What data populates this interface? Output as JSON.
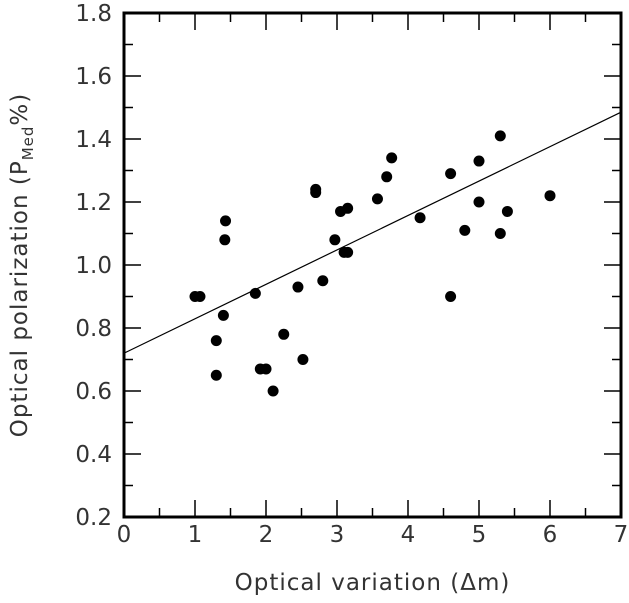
{
  "chart_data": {
    "type": "scatter",
    "xlabel": "Optical variation (Δm)",
    "ylabel_prefix": "Optical polarization (P",
    "ylabel_subscript": "Med",
    "ylabel_suffix": "%)",
    "xlim": [
      0,
      7
    ],
    "ylim": [
      0.2,
      1.8
    ],
    "x_ticks": [
      0,
      1,
      2,
      3,
      4,
      5,
      6,
      7
    ],
    "x_tick_labels": [
      "0",
      "1",
      "2",
      "3",
      "4",
      "5",
      "6",
      "7"
    ],
    "y_ticks": [
      0.2,
      0.4,
      0.6,
      0.8,
      1.0,
      1.2,
      1.4,
      1.6,
      1.8
    ],
    "y_tick_labels": [
      "0.2",
      "0.4",
      "0.6",
      "0.8",
      "1.0",
      "1.2",
      "1.4",
      "1.6",
      "1.8"
    ],
    "grid": false,
    "points": [
      {
        "x": 1.0,
        "y": 0.9
      },
      {
        "x": 1.07,
        "y": 0.9
      },
      {
        "x": 1.3,
        "y": 0.76
      },
      {
        "x": 1.3,
        "y": 0.65
      },
      {
        "x": 1.4,
        "y": 0.84
      },
      {
        "x": 1.42,
        "y": 1.08
      },
      {
        "x": 1.43,
        "y": 1.14
      },
      {
        "x": 1.85,
        "y": 0.91
      },
      {
        "x": 1.92,
        "y": 0.67
      },
      {
        "x": 2.0,
        "y": 0.67
      },
      {
        "x": 2.1,
        "y": 0.6
      },
      {
        "x": 2.25,
        "y": 0.78
      },
      {
        "x": 2.45,
        "y": 0.93
      },
      {
        "x": 2.52,
        "y": 0.7
      },
      {
        "x": 2.7,
        "y": 1.23
      },
      {
        "x": 2.7,
        "y": 1.24
      },
      {
        "x": 2.8,
        "y": 0.95
      },
      {
        "x": 2.97,
        "y": 1.08
      },
      {
        "x": 3.05,
        "y": 1.17
      },
      {
        "x": 3.1,
        "y": 1.04
      },
      {
        "x": 3.15,
        "y": 1.04
      },
      {
        "x": 3.15,
        "y": 1.18
      },
      {
        "x": 3.57,
        "y": 1.21
      },
      {
        "x": 3.7,
        "y": 1.28
      },
      {
        "x": 3.77,
        "y": 1.34
      },
      {
        "x": 4.17,
        "y": 1.15
      },
      {
        "x": 4.6,
        "y": 1.29
      },
      {
        "x": 4.6,
        "y": 0.9
      },
      {
        "x": 4.8,
        "y": 1.11
      },
      {
        "x": 5.0,
        "y": 1.33
      },
      {
        "x": 5.0,
        "y": 1.2
      },
      {
        "x": 5.3,
        "y": 1.41
      },
      {
        "x": 5.3,
        "y": 1.1
      },
      {
        "x": 5.4,
        "y": 1.17
      },
      {
        "x": 6.0,
        "y": 1.22
      }
    ],
    "fit_line": {
      "x": [
        0,
        7
      ],
      "y": [
        0.72,
        1.485
      ]
    }
  }
}
